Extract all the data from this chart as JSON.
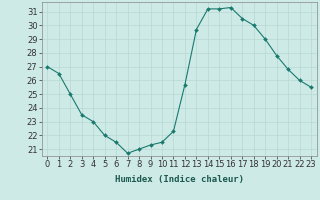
{
  "x": [
    0,
    1,
    2,
    3,
    4,
    5,
    6,
    7,
    8,
    9,
    10,
    11,
    12,
    13,
    14,
    15,
    16,
    17,
    18,
    19,
    20,
    21,
    22,
    23
  ],
  "y": [
    27,
    26.5,
    25,
    23.5,
    23,
    22,
    21.5,
    20.7,
    21,
    21.3,
    21.5,
    22.3,
    25.7,
    29.7,
    31.2,
    31.2,
    31.3,
    30.5,
    30,
    29,
    27.8,
    26.8,
    26,
    25.5
  ],
  "line_color": "#1a7a6e",
  "marker": "D",
  "marker_size": 2.0,
  "bg_color": "#ceeae6",
  "grid_color_major": "#b8d8d4",
  "grid_color_minor": "#b8d8d4",
  "xlabel": "Humidex (Indice chaleur)",
  "ylabel_ticks": [
    21,
    22,
    23,
    24,
    25,
    26,
    27,
    28,
    29,
    30,
    31
  ],
  "xlim": [
    -0.5,
    23.5
  ],
  "ylim": [
    20.5,
    31.7
  ],
  "xticks": [
    0,
    1,
    2,
    3,
    4,
    5,
    6,
    7,
    8,
    9,
    10,
    11,
    12,
    13,
    14,
    15,
    16,
    17,
    18,
    19,
    20,
    21,
    22,
    23
  ],
  "label_fontsize": 6.5,
  "tick_fontsize": 6.0
}
